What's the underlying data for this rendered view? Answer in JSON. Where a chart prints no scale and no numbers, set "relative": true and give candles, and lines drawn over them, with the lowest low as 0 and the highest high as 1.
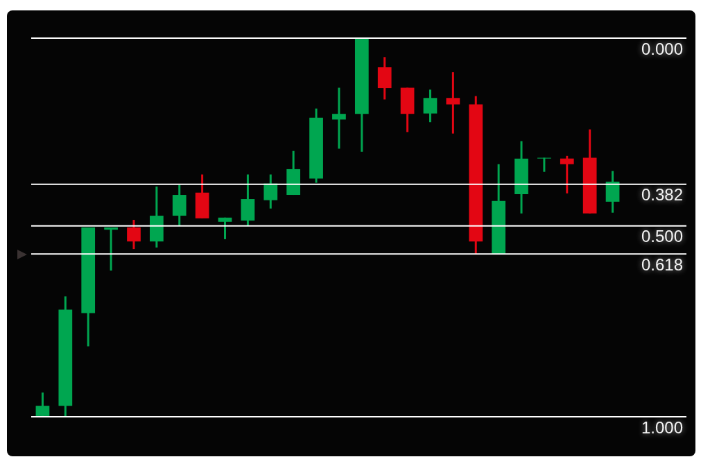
{
  "chart_data": {
    "type": "candlestick",
    "relative": true,
    "tick_labels": false,
    "categories": [
      null,
      null,
      null,
      null,
      null,
      null,
      null,
      null,
      null,
      null,
      null,
      null,
      null,
      null,
      null,
      null,
      null,
      null,
      null,
      null,
      null,
      null,
      null,
      null,
      null,
      null
    ],
    "ohlc": [
      [
        0.002,
        0.064,
        0,
        0.029
      ],
      [
        0.029,
        0.318,
        0,
        0.283
      ],
      [
        0.274,
        0.5,
        0.186,
        0.5
      ],
      [
        0.494,
        0.5,
        0.386,
        0.5
      ],
      [
        0.5,
        0.52,
        0.443,
        0.463
      ],
      [
        0.463,
        0.608,
        0.447,
        0.531
      ],
      [
        0.531,
        0.612,
        0.504,
        0.586
      ],
      [
        0.592,
        0.64,
        0.524,
        0.524
      ],
      [
        0.515,
        0.526,
        0.469,
        0.526
      ],
      [
        0.518,
        0.64,
        0.504,
        0.575
      ],
      [
        0.572,
        0.64,
        0.55,
        0.616
      ],
      [
        0.586,
        0.702,
        0.586,
        0.654
      ],
      [
        0.629,
        0.814,
        0.618,
        0.79
      ],
      [
        0.785,
        0.869,
        0.708,
        0.8
      ],
      [
        0.8,
        1,
        0.7,
        1
      ],
      [
        0.923,
        0.95,
        0.838,
        0.868
      ],
      [
        0.869,
        0.869,
        0.752,
        0.8
      ],
      [
        0.801,
        0.864,
        0.778,
        0.842
      ],
      [
        0.842,
        0.91,
        0.748,
        0.825
      ],
      [
        0.825,
        0.847,
        0.43,
        0.463
      ],
      [
        0.43,
        0.667,
        0.43,
        0.57
      ],
      [
        0.588,
        0.728,
        0.537,
        0.682
      ],
      [
        0.682,
        0.684,
        0.647,
        0.684
      ],
      [
        0.682,
        0.689,
        0.59,
        0.667
      ],
      [
        0.684,
        0.759,
        0.537,
        0.537
      ],
      [
        0.568,
        0.649,
        0.539,
        0.621
      ]
    ],
    "colors": [
      "#00a650",
      "#00a650",
      "#00a650",
      "#00a650",
      "#e30613",
      "#00a650",
      "#00a650",
      "#e30613",
      "#00a650",
      "#00a650",
      "#00a650",
      "#00a650",
      "#00a650",
      "#00a650",
      "#00a650",
      "#e30613",
      "#e30613",
      "#00a650",
      "#e30613",
      "#e30613",
      "#00a650",
      "#00a650",
      "#00a650",
      "#e30613",
      "#e30613",
      "#00a650"
    ],
    "ref_lines": [
      {
        "axis": "y",
        "value": 1,
        "color": "#ffffff"
      },
      {
        "axis": "y",
        "value": 0.614,
        "color": "#ffffff"
      },
      {
        "axis": "y",
        "value": 0.504,
        "color": "#ffffff"
      },
      {
        "axis": "y",
        "value": 0.43,
        "color": "#ffffff"
      },
      {
        "axis": "y",
        "value": 0,
        "color": "#ffffff"
      }
    ],
    "annotations": [
      {
        "text": "0.000",
        "y": 1
      },
      {
        "text": "0.382",
        "y": 0.614
      },
      {
        "text": "0.500",
        "y": 0.504
      },
      {
        "text": "0.618",
        "y": 0.43
      },
      {
        "text": "1.000",
        "y": 0
      }
    ]
  }
}
